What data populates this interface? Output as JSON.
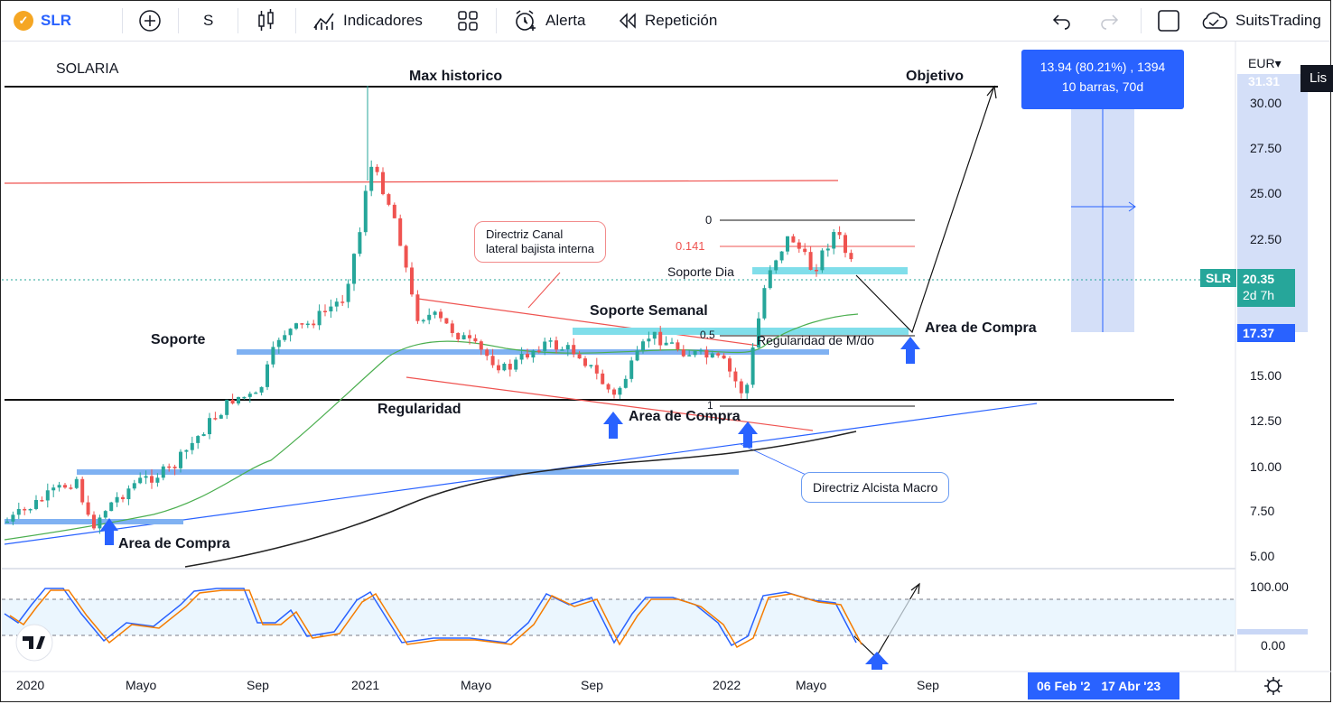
{
  "toolbar": {
    "symbol": "SLR",
    "interval": "S",
    "indicators_label": "Indicadores",
    "alert_label": "Alerta",
    "replay_label": "Repetición",
    "account_label": "SuitsTrading"
  },
  "chart": {
    "title": "SOLARIA",
    "currency": "EUR",
    "currency_caret": "▾",
    "side_tab": "Lis",
    "price_ticks": [
      "30.00",
      "27.50",
      "25.00",
      "22.50",
      "15.00",
      "12.50",
      "10.00",
      "7.50",
      "5.00"
    ],
    "top_cut_price": "31.31",
    "last_price_tag": {
      "symbol": "SLR",
      "price": "20.35",
      "countdown": "2d 7h"
    },
    "target_tag": "17.37",
    "osc_ticks": [
      "100.00",
      "0.00"
    ],
    "x_labels": [
      "2020",
      "Mayo",
      "Sep",
      "2021",
      "Mayo",
      "Sep",
      "2022",
      "Mayo",
      "Sep"
    ],
    "range_from": "06 Feb '2",
    "range_to": "17 Abr '23",
    "measure_box": {
      "line1": "13.94 (80.21%) , 1394",
      "line2": "10 barras, 70d"
    },
    "fib_labels": [
      "0",
      "0.141",
      "0.5",
      "1"
    ],
    "annotations": {
      "max_hist": "Max historico",
      "objetivo": "Objetivo",
      "soporte": "Soporte",
      "regularidad": "Regularidad",
      "soporte_semanal": "Soporte Semanal",
      "soporte_dia": "Soporte Dia",
      "regularidad_md": "Regularidad de M/do",
      "area_compra_1": "Area de Compra",
      "area_compra_2": "Area de Compra",
      "area_compra_3": "Area de Compra",
      "callout_canal_1": "Directriz Canal",
      "callout_canal_2": "lateral bajista interna",
      "callout_macro": "Directriz Alcista Macro"
    },
    "colors": {
      "up": "#26a69a",
      "down": "#ef5350",
      "accent": "#2962ff",
      "ema_green": "#4caf50",
      "ema_black": "#222222"
    }
  }
}
